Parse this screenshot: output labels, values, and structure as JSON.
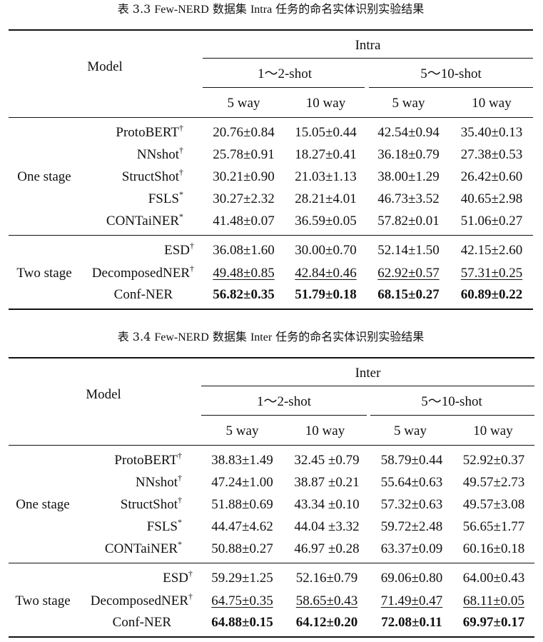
{
  "tables": [
    {
      "caption": {
        "prefix": "表 3.3 ",
        "name": "Few-NERD",
        "mid": " 数据集 ",
        "task": "Intra",
        "suffix": " 任务的命名实体识别实验结果"
      },
      "header": {
        "model": "Model",
        "group": "Intra",
        "shot1": "1～2-shot",
        "shot2": "5～10-shot",
        "ways": [
          "5 way",
          "10 way",
          "5 way",
          "10 way"
        ]
      },
      "sections": [
        {
          "label": "One stage",
          "rows": [
            {
              "model": "ProtoBERT",
              "mark": "†",
              "values": [
                "20.76±0.84",
                "15.05±0.44",
                "42.54±0.94",
                "35.40±0.13"
              ],
              "style": [
                "",
                "",
                "",
                ""
              ]
            },
            {
              "model": "NNshot",
              "mark": "†",
              "values": [
                "25.78±0.91",
                "18.27±0.41",
                "36.18±0.79",
                "27.38±0.53"
              ],
              "style": [
                "",
                "",
                "",
                ""
              ]
            },
            {
              "model": "StructShot",
              "mark": "†",
              "values": [
                "30.21±0.90",
                "21.03±1.13",
                "38.00±1.29",
                "26.42±0.60"
              ],
              "style": [
                "",
                "",
                "",
                ""
              ]
            },
            {
              "model": "FSLS",
              "mark": "*",
              "values": [
                "30.27±2.32",
                "28.21±4.01",
                "46.73±3.52",
                "40.65±2.98"
              ],
              "style": [
                "",
                "",
                "",
                ""
              ]
            },
            {
              "model": "CONTaiNER",
              "mark": "*",
              "values": [
                "41.48±0.07",
                "36.59±0.05",
                "57.82±0.01",
                "51.06±0.27"
              ],
              "style": [
                "",
                "",
                "",
                ""
              ]
            }
          ]
        },
        {
          "label": "Two stage",
          "rows": [
            {
              "model": "ESD",
              "mark": "†",
              "values": [
                "36.08±1.60",
                "30.00±0.70",
                "52.14±1.50",
                "42.15±2.60"
              ],
              "style": [
                "",
                "",
                "",
                ""
              ]
            },
            {
              "model": "DecomposedNER",
              "mark": "†",
              "values": [
                "49.48±0.85",
                "42.84±0.46",
                "62.92±0.57",
                "57.31±0.25"
              ],
              "style": [
                "ul",
                "ul",
                "ul",
                "ul"
              ]
            },
            {
              "model": "Conf-NER",
              "mark": "",
              "values": [
                "56.82±0.35",
                "51.79±0.18",
                "68.15±0.27",
                "60.89±0.22"
              ],
              "style": [
                "bold",
                "bold",
                "bold",
                "bold"
              ]
            }
          ]
        }
      ]
    },
    {
      "caption": {
        "prefix": "表 3.4 ",
        "name": "Few-NERD",
        "mid": " 数据集 ",
        "task": "Inter",
        "suffix": " 任务的命名实体识别实验结果"
      },
      "header": {
        "model": "Model",
        "group": "Inter",
        "shot1": "1～2-shot",
        "shot2": "5～10-shot",
        "ways": [
          "5 way",
          "10 way",
          "5 way",
          "10 way"
        ]
      },
      "sections": [
        {
          "label": "One stage",
          "rows": [
            {
              "model": "ProtoBERT",
              "mark": "†",
              "values": [
                "38.83±1.49",
                "32.45 ±0.79",
                "58.79±0.44",
                "52.92±0.37"
              ],
              "style": [
                "",
                "",
                "",
                ""
              ]
            },
            {
              "model": "NNshot",
              "mark": "†",
              "values": [
                "47.24±1.00",
                "38.87 ±0.21",
                "55.64±0.63",
                "49.57±2.73"
              ],
              "style": [
                "",
                "",
                "",
                ""
              ]
            },
            {
              "model": "StructShot",
              "mark": "†",
              "values": [
                "51.88±0.69",
                "43.34 ±0.10",
                "57.32±0.63",
                "49.57±3.08"
              ],
              "style": [
                "",
                "",
                "",
                ""
              ]
            },
            {
              "model": "FSLS",
              "mark": "*",
              "values": [
                "44.47±4.62",
                "44.04 ±3.32",
                "59.72±2.48",
                "56.65±1.77"
              ],
              "style": [
                "",
                "",
                "",
                ""
              ]
            },
            {
              "model": "CONTaiNER",
              "mark": "*",
              "values": [
                "50.88±0.27",
                "46.97 ±0.28",
                "63.37±0.09",
                "60.16±0.18"
              ],
              "style": [
                "",
                "",
                "",
                ""
              ]
            }
          ]
        },
        {
          "label": "Two stage",
          "rows": [
            {
              "model": "ESD",
              "mark": "†",
              "values": [
                "59.29±1.25",
                "52.16±0.79",
                "69.06±0.80",
                "64.00±0.43"
              ],
              "style": [
                "",
                "",
                "",
                ""
              ]
            },
            {
              "model": "DecomposedNER",
              "mark": "†",
              "values": [
                "64.75±0.35",
                "58.65±0.43",
                "71.49±0.47",
                "68.11±0.05"
              ],
              "style": [
                "ul",
                "ul",
                "ul",
                "ul"
              ]
            },
            {
              "model": "Conf-NER",
              "mark": "",
              "values": [
                "64.88±0.15",
                "64.12±0.20",
                "72.08±0.11",
                "69.97±0.17"
              ],
              "style": [
                "bold",
                "bold",
                "bold",
                "bold"
              ]
            }
          ]
        }
      ]
    }
  ]
}
